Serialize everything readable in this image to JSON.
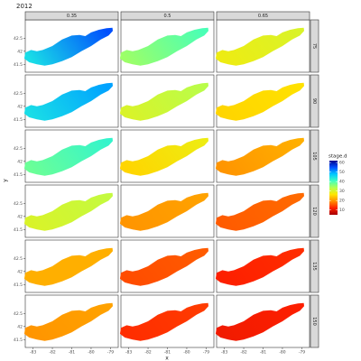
{
  "chart_data": {
    "type": "map-facets",
    "title": "2012",
    "x_label": "x",
    "y_label": "y",
    "columns": [
      "0.35",
      "0.5",
      "0.65"
    ],
    "rows": [
      "75",
      "90",
      "105",
      "120",
      "135",
      "150"
    ],
    "values": [
      [
        [
          45,
          55
        ],
        [
          35,
          40
        ],
        [
          28,
          30
        ]
      ],
      [
        [
          45,
          50
        ],
        [
          30,
          33
        ],
        [
          25,
          26
        ]
      ],
      [
        [
          38,
          42
        ],
        [
          25,
          28
        ],
        [
          20,
          22
        ]
      ],
      [
        [
          30,
          32
        ],
        [
          20,
          21
        ],
        [
          16,
          17
        ]
      ],
      [
        [
          22,
          22
        ],
        [
          15,
          16
        ],
        [
          12,
          13
        ]
      ],
      [
        [
          20,
          21
        ],
        [
          13,
          14
        ],
        [
          11,
          12
        ]
      ]
    ],
    "xlim": [
      -83.4,
      -78.6
    ],
    "xticks": [
      -83,
      -82,
      -81,
      -80,
      -79
    ],
    "ylim": [
      41.2,
      43.2
    ],
    "yticks": [
      41.5,
      42.0,
      42.5
    ],
    "legend_title": "stage.d",
    "colorbar_lim": [
      5,
      62
    ],
    "colorbar_ticks": [
      10,
      20,
      30,
      40,
      50,
      60
    ],
    "colors": [
      "#a50000",
      "#ff2000",
      "#ff8c00",
      "#ffe600",
      "#b4ff50",
      "#40ffc0",
      "#00c8ff",
      "#0050ff",
      "#00008c"
    ]
  }
}
